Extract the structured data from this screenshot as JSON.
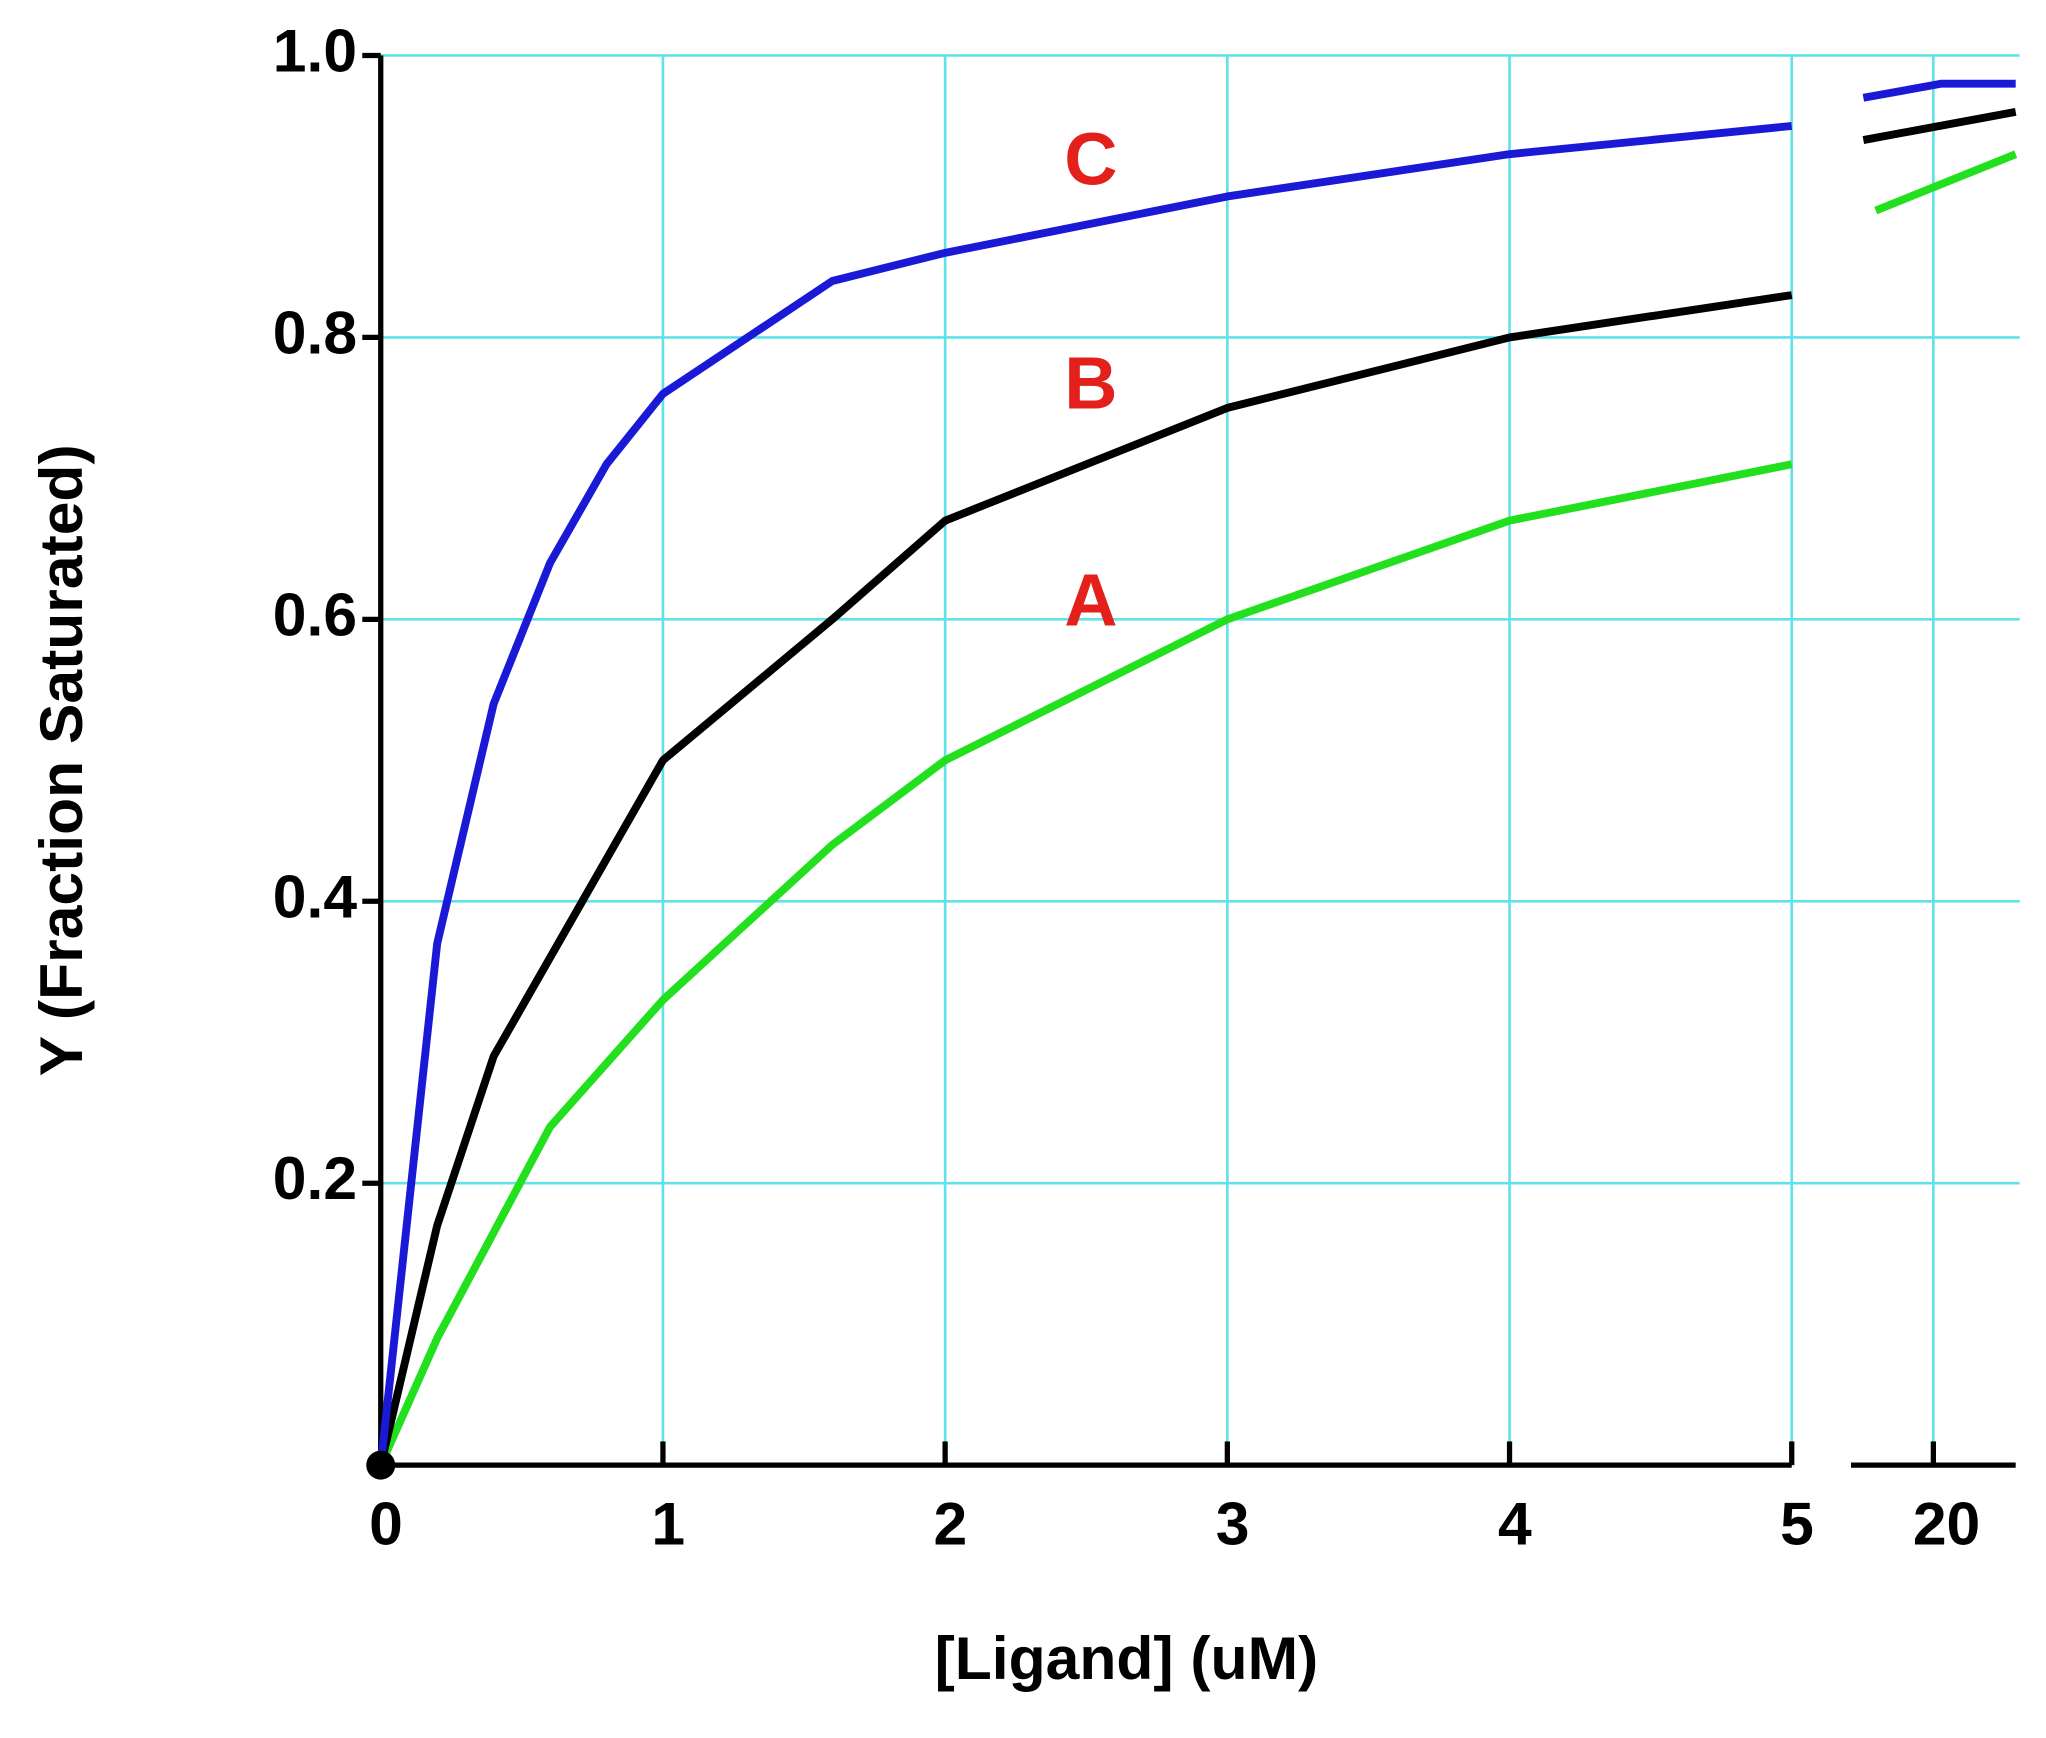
{
  "chart_data": [
    {
      "type": "line",
      "xlabel": "[Ligand] (uM)",
      "ylabel": "Y (Fraction Saturated)",
      "xlim": [
        0,
        5
      ],
      "ylim": [
        0,
        1
      ],
      "xticks": [
        0,
        1,
        2,
        3,
        4,
        5
      ],
      "yticks": [
        0.2,
        0.4,
        0.6,
        0.8,
        {
          "value": 1,
          "label": "1.0"
        }
      ],
      "grid": true,
      "series": [
        {
          "name": "A",
          "color": "#22e01e",
          "label_color": "#e3201b",
          "x": [
            0,
            0.2,
            0.6,
            1,
            1.6,
            2,
            3,
            4,
            5
          ],
          "values": [
            0,
            0.09,
            0.24,
            0.33,
            0.44,
            0.5,
            0.6,
            0.67,
            0.71
          ]
        },
        {
          "name": "B",
          "color": "#000000",
          "label_color": "#e3201b",
          "x": [
            0,
            0.2,
            0.4,
            1,
            1.6,
            2,
            3,
            4,
            5
          ],
          "values": [
            0,
            0.17,
            0.29,
            0.5,
            0.6,
            0.67,
            0.75,
            0.8,
            0.83
          ]
        },
        {
          "name": "C",
          "color": "#1a1ad6",
          "label_color": "#e3201b",
          "x": [
            0,
            0.2,
            0.4,
            0.6,
            0.8,
            1,
            1.6,
            2,
            3,
            4,
            5
          ],
          "values": [
            0,
            0.37,
            0.54,
            0.64,
            0.71,
            0.76,
            0.84,
            0.86,
            0.9,
            0.93,
            0.95
          ]
        }
      ]
    },
    {
      "type": "line",
      "xlim": [
        18,
        22
      ],
      "ylim": [
        0,
        1
      ],
      "xticks": [
        20
      ],
      "grid": true,
      "series": [
        {
          "color": "#22e01e",
          "x": [
            18.6,
            22
          ],
          "values": [
            0.89,
            0.93
          ]
        },
        {
          "color": "#000000",
          "x": [
            18.3,
            22
          ],
          "values": [
            0.94,
            0.96
          ]
        },
        {
          "color": "#1a1ad6",
          "x": [
            18.3,
            20.2,
            22
          ],
          "values": [
            0.97,
            0.98,
            0.98
          ]
        }
      ]
    }
  ]
}
